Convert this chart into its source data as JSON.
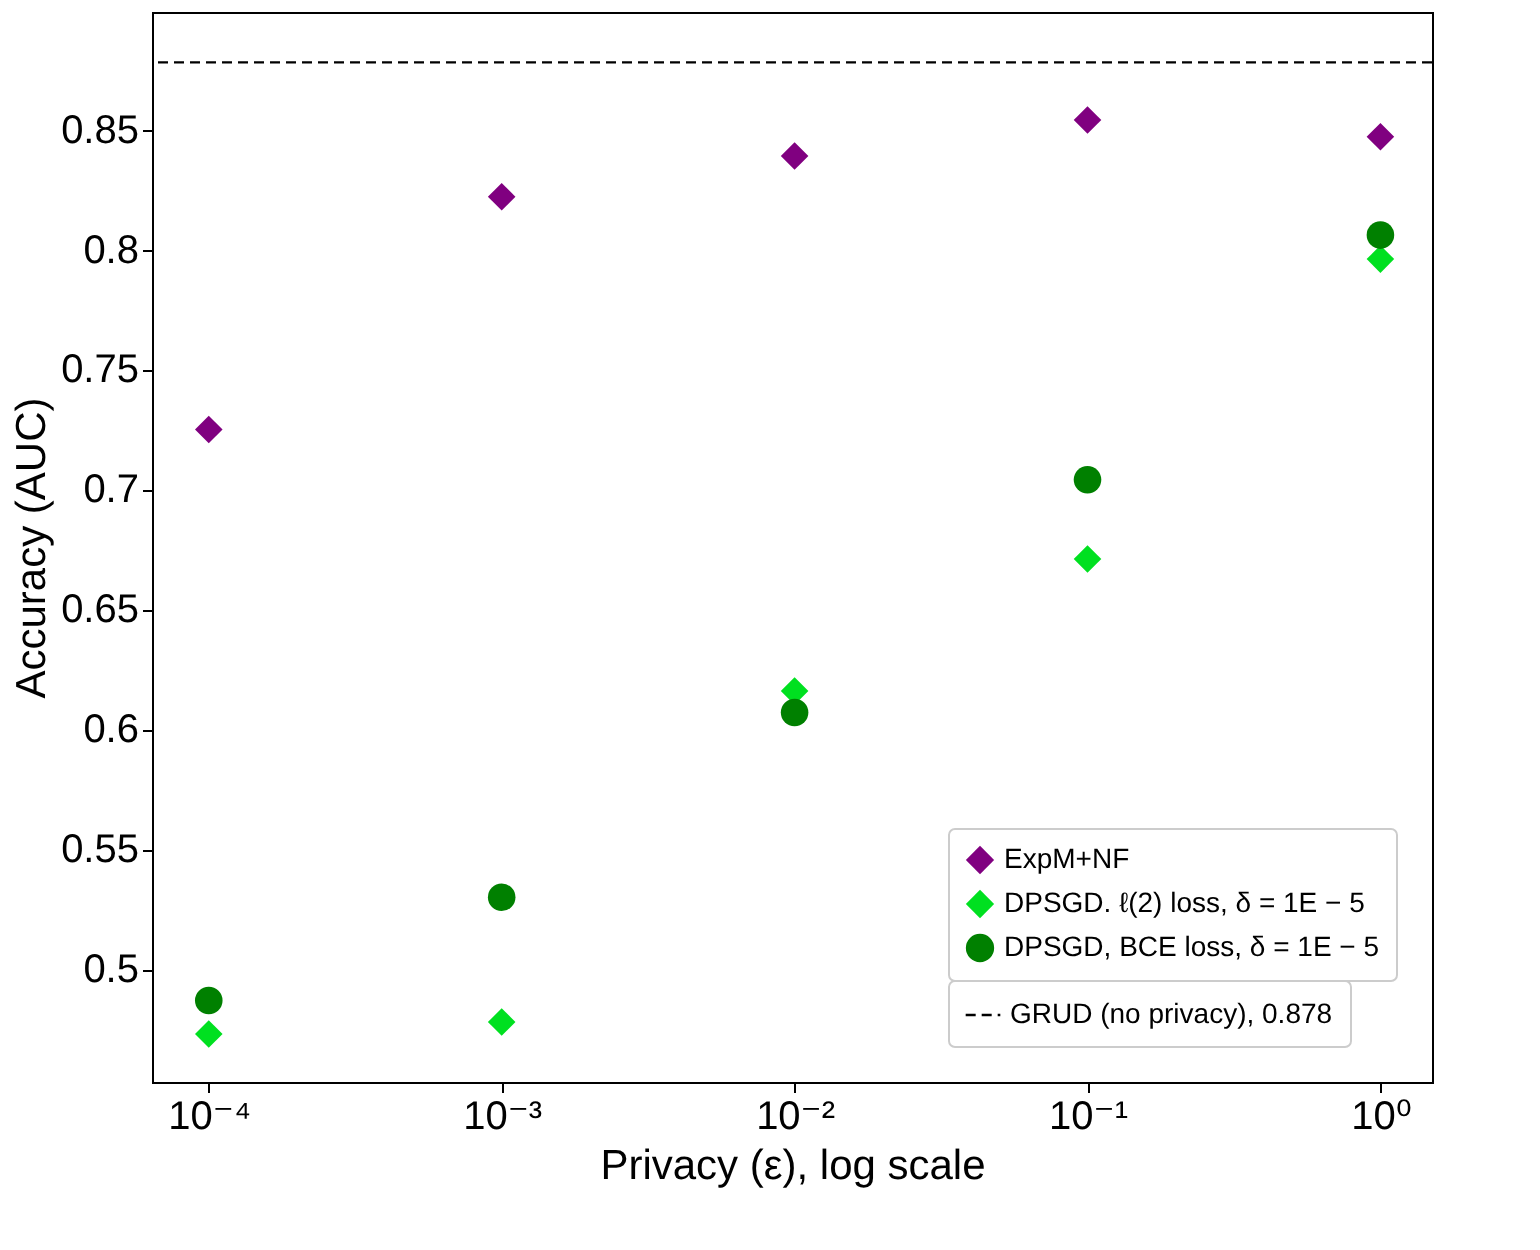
{
  "chart_data": {
    "type": "scatter",
    "xlabel": "Privacy (ε), log scale",
    "ylabel": "Accuracy (AUC)",
    "log": "x",
    "x": [
      0.0001,
      0.001,
      0.01,
      0.1,
      1
    ],
    "xlim": [
      6.4e-05,
      1.5
    ],
    "ylim": [
      0.453,
      0.899
    ],
    "xticks": [
      {
        "value": 0.0001,
        "label": "10⁻⁴"
      },
      {
        "value": 0.001,
        "label": "10⁻³"
      },
      {
        "value": 0.01,
        "label": "10⁻²"
      },
      {
        "value": 0.1,
        "label": "10⁻¹"
      },
      {
        "value": 1,
        "label": "10⁰"
      }
    ],
    "yticks": [
      0.5,
      0.55,
      0.6,
      0.65,
      0.7,
      0.75,
      0.8,
      0.85
    ],
    "legend": "bottom right",
    "series": [
      {
        "name": "ExpM+NF",
        "color": "#800080",
        "marker": "diamond",
        "values": [
          0.725,
          0.822,
          0.839,
          0.854,
          0.847
        ]
      },
      {
        "name": "DPSGD. ℓ(2) loss, δ = 1E − 5",
        "color": "#00e020",
        "marker": "diamond",
        "values": [
          0.473,
          0.478,
          0.616,
          0.671,
          0.796
        ]
      },
      {
        "name": "DPSGD, BCE loss, δ = 1E − 5",
        "color": "#008000",
        "marker": "circle",
        "values": [
          0.487,
          0.53,
          0.607,
          0.704,
          0.806
        ]
      }
    ],
    "ref_lines": [
      {
        "axis": "y",
        "value": 0.878,
        "label": "GRUD (no privacy), 0.878",
        "color": "#000000",
        "line_style": "dashed"
      }
    ]
  }
}
